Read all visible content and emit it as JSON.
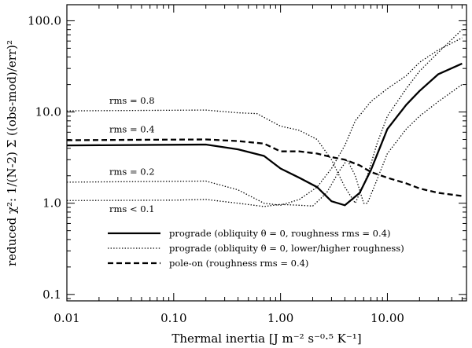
{
  "chart_data": {
    "type": "line",
    "xlabel": "Thermal inertia [J m⁻² s⁻⁰·⁵ K⁻¹]",
    "ylabel": "reduced χ²: 1/(N-2) Σ ((obs-mod)/err)²",
    "xscale": "log",
    "yscale": "log",
    "xlim": [
      0.01,
      55
    ],
    "ylim": [
      0.085,
      150
    ],
    "x_ticks": [
      {
        "value": 0.01,
        "label": "0.01"
      },
      {
        "value": 0.1,
        "label": "0.10"
      },
      {
        "value": 1,
        "label": "1.00"
      },
      {
        "value": 10,
        "label": "10.00"
      }
    ],
    "y_ticks": [
      {
        "value": 0.1,
        "label": "0.1"
      },
      {
        "value": 1,
        "label": "1.0"
      },
      {
        "value": 10,
        "label": "10.0"
      },
      {
        "value": 100,
        "label": "100.0"
      }
    ],
    "grid": false,
    "legend_placement": "bottom-center",
    "legend": [
      {
        "label": "prograde (obliquity θ = 0, roughness rms = 0.4)",
        "style": "solid"
      },
      {
        "label": "prograde (obliquity θ = 0, lower/higher roughness)",
        "style": "dotted"
      },
      {
        "label": "pole-on (roughness rms = 0.4)",
        "style": "dashed"
      }
    ],
    "annotations": [
      {
        "text": "rms = 0.8",
        "x": 0.025,
        "y": 12.3
      },
      {
        "text": "rms = 0.4",
        "x": 0.025,
        "y": 6.0
      },
      {
        "text": "rms = 0.2",
        "x": 0.025,
        "y": 2.05
      },
      {
        "text": "rms < 0.1",
        "x": 0.025,
        "y": 0.8
      }
    ],
    "series": [
      {
        "style": "solid",
        "points": [
          [
            0.01,
            4.3
          ],
          [
            0.2,
            4.4
          ],
          [
            0.4,
            3.9
          ],
          [
            0.7,
            3.3
          ],
          [
            1.0,
            2.4
          ],
          [
            1.5,
            1.9
          ],
          [
            2.2,
            1.5
          ],
          [
            3.0,
            1.05
          ],
          [
            4.0,
            0.95
          ],
          [
            5.5,
            1.3
          ],
          [
            7.0,
            2.3
          ],
          [
            10.0,
            6.5
          ],
          [
            15,
            12
          ],
          [
            20,
            17
          ],
          [
            30,
            26
          ],
          [
            50,
            34
          ]
        ]
      },
      {
        "style": "dotted",
        "points": [
          [
            0.01,
            10.3
          ],
          [
            0.2,
            10.5
          ],
          [
            0.4,
            9.8
          ],
          [
            0.6,
            9.6
          ],
          [
            1.0,
            7.0
          ],
          [
            1.5,
            6.3
          ],
          [
            2.2,
            5.0
          ],
          [
            3.0,
            3.0
          ],
          [
            4.0,
            1.5
          ],
          [
            5.0,
            1.0
          ],
          [
            6.5,
            2.0
          ],
          [
            8.0,
            4.5
          ],
          [
            10.0,
            9
          ],
          [
            15,
            18
          ],
          [
            20,
            28
          ],
          [
            30,
            45
          ],
          [
            50,
            80
          ]
        ]
      },
      {
        "style": "dotted",
        "points": [
          [
            0.01,
            1.7
          ],
          [
            0.2,
            1.75
          ],
          [
            0.4,
            1.4
          ],
          [
            0.7,
            1.0
          ],
          [
            1.0,
            0.95
          ],
          [
            1.5,
            1.1
          ],
          [
            2.2,
            1.5
          ],
          [
            3.0,
            2.4
          ],
          [
            4.0,
            4.3
          ],
          [
            5.0,
            8
          ],
          [
            7.0,
            13
          ],
          [
            10.0,
            18
          ],
          [
            15,
            25
          ],
          [
            20,
            35
          ],
          [
            30,
            48
          ],
          [
            50,
            65
          ]
        ]
      },
      {
        "style": "dotted",
        "points": [
          [
            0.01,
            1.07
          ],
          [
            0.1,
            1.08
          ],
          [
            0.2,
            1.1
          ],
          [
            0.4,
            1.0
          ],
          [
            0.7,
            0.92
          ],
          [
            1.0,
            0.97
          ],
          [
            1.5,
            0.95
          ],
          [
            2.0,
            0.93
          ],
          [
            2.7,
            1.3
          ],
          [
            3.5,
            2.2
          ],
          [
            4.2,
            3.0
          ],
          [
            5.0,
            2.0
          ],
          [
            6.0,
            1.0
          ],
          [
            6.5,
            1.0
          ],
          [
            7.5,
            1.5
          ],
          [
            10.0,
            3.5
          ],
          [
            15,
            6.5
          ],
          [
            20,
            9
          ],
          [
            30,
            13
          ],
          [
            50,
            20
          ]
        ]
      },
      {
        "style": "dashed",
        "points": [
          [
            0.01,
            4.9
          ],
          [
            0.2,
            5.0
          ],
          [
            0.4,
            4.8
          ],
          [
            0.7,
            4.5
          ],
          [
            1.0,
            3.7
          ],
          [
            1.5,
            3.7
          ],
          [
            2.2,
            3.5
          ],
          [
            3.0,
            3.2
          ],
          [
            4.0,
            3.0
          ],
          [
            5.5,
            2.6
          ],
          [
            7.0,
            2.2
          ],
          [
            10.0,
            1.9
          ],
          [
            15,
            1.65
          ],
          [
            20,
            1.45
          ],
          [
            30,
            1.3
          ],
          [
            50,
            1.2
          ]
        ]
      }
    ]
  }
}
